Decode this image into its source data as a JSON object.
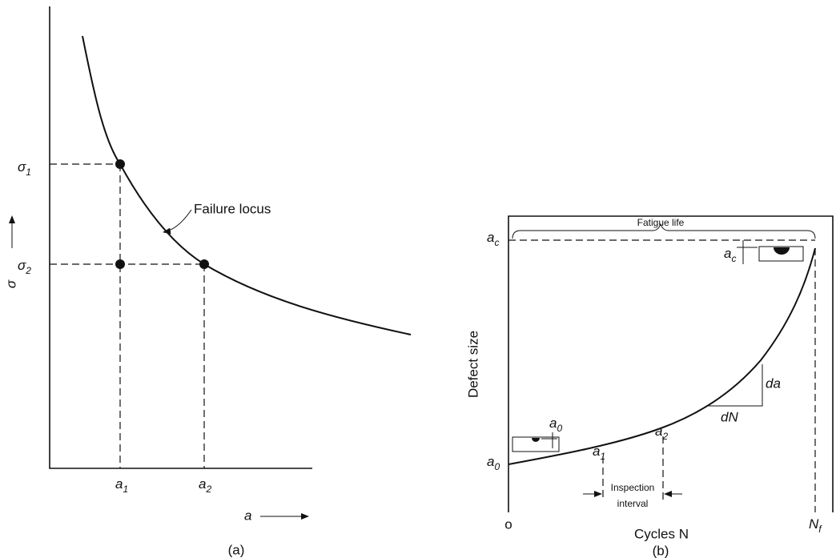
{
  "panel_a": {
    "caption": "(a)",
    "y_axis_label": "σ",
    "x_axis_label": "a",
    "curve_label": "Failure locus",
    "y_labels": [
      {
        "base": "σ",
        "sub": "1"
      },
      {
        "base": "σ",
        "sub": "2"
      }
    ],
    "x_labels": [
      {
        "base": "a",
        "sub": "1"
      },
      {
        "base": "a",
        "sub": "2"
      }
    ]
  },
  "panel_b": {
    "caption": "(b)",
    "y_axis_label": "Defect size",
    "x_axis_label": "Cycles N",
    "origin_label": "o",
    "end_label": {
      "base": "N",
      "sub": "f"
    },
    "span_label": "Fatigue life",
    "axis_critical": {
      "base": "a",
      "sub": "c"
    },
    "axis_initial": {
      "base": "a",
      "sub": "0"
    },
    "inset_critical": {
      "base": "a",
      "sub": "c"
    },
    "inset_initial": {
      "base": "a",
      "sub": "0"
    },
    "points": [
      {
        "base": "a",
        "sub": "1"
      },
      {
        "base": "a",
        "sub": "2"
      }
    ],
    "interval_label": [
      "Inspection",
      "interval"
    ],
    "slope_run": "dN",
    "slope_rise": "da"
  }
}
